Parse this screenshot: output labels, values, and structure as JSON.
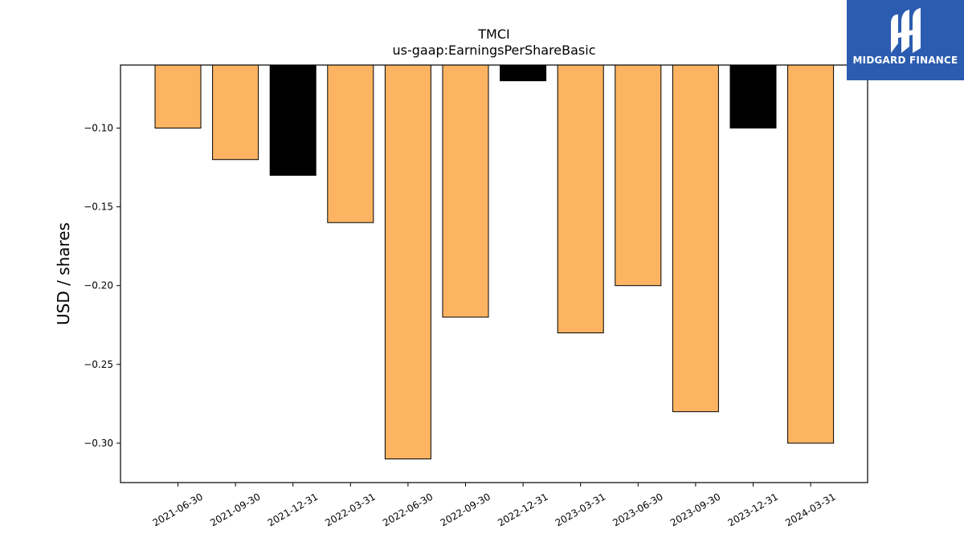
{
  "chart_data": {
    "type": "bar",
    "title": "TMCI",
    "subtitle": "us-gaap:EarningsPerShareBasic",
    "ylabel": "USD / shares",
    "xlabel": "",
    "ylim": [
      -0.325,
      -0.06
    ],
    "yticks": [
      -0.1,
      -0.15,
      -0.2,
      -0.25,
      -0.3
    ],
    "ytick_labels": [
      "−0.10",
      "−0.15",
      "−0.20",
      "−0.25",
      "−0.30"
    ],
    "categories": [
      "2021-06-30",
      "2021-09-30",
      "2021-12-31",
      "2022-03-31",
      "2022-06-30",
      "2022-09-30",
      "2022-12-31",
      "2023-03-31",
      "2023-06-30",
      "2023-09-30",
      "2023-12-31",
      "2024-03-31"
    ],
    "values": [
      -0.1,
      -0.12,
      -0.13,
      -0.16,
      -0.31,
      -0.22,
      -0.07,
      -0.23,
      -0.2,
      -0.28,
      -0.1,
      -0.3
    ],
    "bar_colors": [
      "#fdb462",
      "#fdb462",
      "#000000",
      "#fdb462",
      "#fdb462",
      "#fdb462",
      "#000000",
      "#fdb462",
      "#fdb462",
      "#fdb462",
      "#000000",
      "#fdb462"
    ],
    "grid": false
  },
  "logo": {
    "text": "MIDGARD FINANCE",
    "color": "#2b5cb0"
  }
}
